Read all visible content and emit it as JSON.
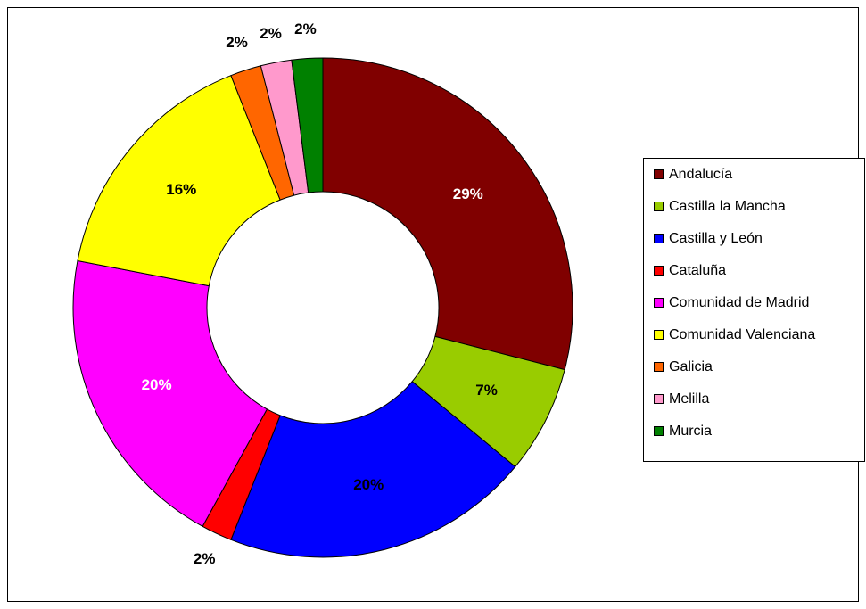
{
  "chart_data": {
    "type": "donut",
    "categories": [
      "Andalucía",
      "Castilla la Mancha",
      "Castilla y León",
      "Cataluña",
      "Comunidad de Madrid",
      "Comunidad Valenciana",
      "Galicia",
      "Melilla",
      "Murcia"
    ],
    "values": [
      29,
      7,
      20,
      2,
      20,
      16,
      2,
      2,
      2
    ],
    "value_labels": [
      "29%",
      "7%",
      "20%",
      "2%",
      "20%",
      "16%",
      "2%",
      "2%",
      "2%"
    ],
    "colors": [
      "#800000",
      "#99cc00",
      "#0000ff",
      "#ff0000",
      "#ff00ff",
      "#ffff00",
      "#ff6600",
      "#ff99cc",
      "#008000"
    ],
    "label_colors": [
      "#ffffff",
      "#000000",
      "#000000",
      "#000000",
      "#ffffff",
      "#000000",
      "#000000",
      "#000000",
      "#000000"
    ],
    "legend": "right"
  }
}
